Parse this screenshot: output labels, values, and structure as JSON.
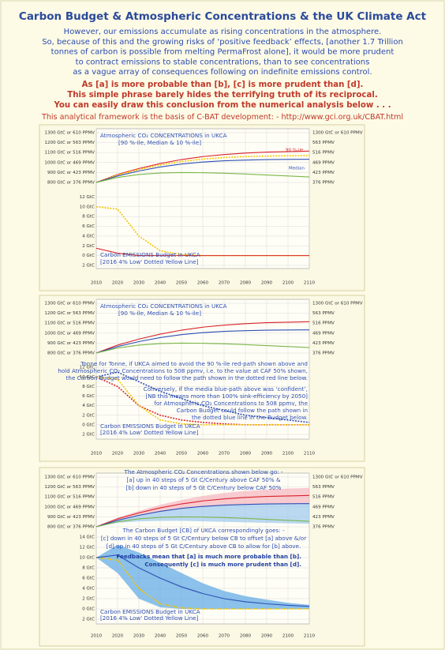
{
  "header": {
    "title": "Carbon Budget & Atmospheric Concentrations & the UK Climate Act",
    "intro": [
      "However, our emissions accumulate as rising concentrations in the atmosphere.",
      "So, because of this and the growing risks of ‘positive feedback’ effects, [another 1.7 Trillion",
      "tonnes of carbon is possible from melting PermaFrost alone], it would be more prudent",
      "to contract emissions to stable concentrations, than to see concentrations",
      "as a vague array of consequences following on indefinite emissions control."
    ],
    "emphasis": [
      "As [a] is more probable than [b], [c] is more prudent than [d].",
      "This simple phrase barely hides the terrifying truth of its reciprocal.",
      "You can easily draw this conclusion from the numerical analysis below . . ."
    ],
    "source": "This analytical framework is the basis of C-BAT development: - http://www.gci.org.uk/CBAT.html"
  },
  "chart_data": [
    {
      "type": "line",
      "x": [
        2010,
        2020,
        2030,
        2040,
        2050,
        2060,
        2070,
        2080,
        2090,
        2100,
        2110
      ],
      "xlim": [
        2010,
        2110
      ],
      "xticks": [
        2010,
        2020,
        2030,
        2040,
        2050,
        2060,
        2070,
        2080,
        2090,
        2100,
        2110
      ],
      "ylim": [
        800,
        1300
      ],
      "yticks": [
        {
          "value": 1300,
          "label": "1300 GtC or 610 PPMV"
        },
        {
          "value": 1200,
          "label": "1200 GtC or 563 PPMV"
        },
        {
          "value": 1100,
          "label": "1100 GtC or 516 PPMV"
        },
        {
          "value": 1000,
          "label": "1000 GtC or 469 PPMV"
        },
        {
          "value": 900,
          "label": "900 GtC or 423 PPMV"
        },
        {
          "value": 800,
          "label": "800 GtC or 376 PPMV"
        }
      ],
      "y2lim": [
        800,
        1300
      ],
      "y2ticks": [
        {
          "value": 1300,
          "label": "1300 GtC or 610 PPMV"
        },
        {
          "value": 1200,
          "label": "563 PPMV"
        },
        {
          "value": 1100,
          "label": "516 PPMV"
        },
        {
          "value": 1000,
          "label": "469 PPMV"
        },
        {
          "value": 900,
          "label": "423 PPMV"
        },
        {
          "value": 800,
          "label": "376 PPMV"
        }
      ],
      "y3lim": [
        -2,
        14
      ],
      "y3ticks": [
        {
          "value": 12,
          "label": "12 GtC"
        },
        {
          "value": 10,
          "label": "10 GtC"
        },
        {
          "value": 8,
          "label": "8 GtC"
        },
        {
          "value": 6,
          "label": "6 GtC"
        },
        {
          "value": 4,
          "label": "4 GtC"
        },
        {
          "value": 2,
          "label": "2 GtC"
        },
        {
          "value": 0,
          "label": "0 GtC"
        },
        {
          "value": -2,
          "label": "2 GtC"
        }
      ],
      "grid": true,
      "series": [
        {
          "color": "#d9232a",
          "values": [
            800,
            880,
            940,
            990,
            1030,
            1060,
            1080,
            1095,
            1105,
            1110,
            1115
          ]
        },
        {
          "color": "#f2c500",
          "dash": true,
          "values": [
            800,
            875,
            930,
            975,
            1010,
            1035,
            1050,
            1060,
            1065,
            1068,
            1070
          ]
        },
        {
          "color": "#2f4fb4",
          "values": [
            800,
            865,
            915,
            955,
            985,
            1005,
            1018,
            1025,
            1030,
            1032,
            1033
          ]
        },
        {
          "color": "#7ab648",
          "values": [
            800,
            850,
            880,
            895,
            900,
            898,
            893,
            885,
            875,
            865,
            855
          ]
        },
        {
          "color": "#f2c500",
          "dash": true,
          "axis": "y3",
          "values": [
            10,
            9.5,
            4,
            1,
            0.2,
            0,
            0,
            0,
            0,
            0,
            0
          ]
        },
        {
          "color": "#d9232a",
          "axis": "y3",
          "values": [
            1.5,
            0.5,
            0,
            0,
            0,
            0,
            0,
            0,
            0,
            0,
            0
          ]
        }
      ],
      "annotations": [
        "Atmospheric CO₂ CONCENTRATIONS in UKCA",
        "[90 %-ile, Median & 10 %-ile]",
        "90 %-ile",
        "Median",
        "Carbon EMISSIONS Budget in UKCA",
        "[2016 4% Low' Dotted Yellow Line]"
      ]
    },
    {
      "type": "line",
      "x": [
        2010,
        2020,
        2030,
        2040,
        2050,
        2060,
        2070,
        2080,
        2090,
        2100,
        2110
      ],
      "xlim": [
        2010,
        2110
      ],
      "xticks": [
        2010,
        2020,
        2030,
        2040,
        2050,
        2060,
        2070,
        2080,
        2090,
        2100,
        2110
      ],
      "ylim": [
        800,
        1300
      ],
      "yticks": [
        {
          "value": 1300,
          "label": "1300 GtC or 610 PPMV"
        },
        {
          "value": 1200,
          "label": "1200 GtC or 563 PPMV"
        },
        {
          "value": 1100,
          "label": "1100 GtC or 516 PPMV"
        },
        {
          "value": 1000,
          "label": "1000 GtC or 469 PPMV"
        },
        {
          "value": 900,
          "label": "900 GtC or 423 PPMV"
        },
        {
          "value": 800,
          "label": "800 GtC or 376 PPMV"
        }
      ],
      "y2lim": [
        800,
        1300
      ],
      "y2ticks": [
        {
          "value": 1300,
          "label": "1300 GtC or 610 PPMV"
        },
        {
          "value": 1200,
          "label": "563 PPMV"
        },
        {
          "value": 1100,
          "label": "516 PPMV"
        },
        {
          "value": 1000,
          "label": "469 PPMV"
        },
        {
          "value": 900,
          "label": "423 PPMV"
        },
        {
          "value": 800,
          "label": "376 PPMV"
        }
      ],
      "y3lim": [
        -2,
        14
      ],
      "y3ticks": [
        {
          "value": 12,
          "label": "12 GtC"
        },
        {
          "value": 10,
          "label": "10 GtC"
        },
        {
          "value": 8,
          "label": "8 GtC"
        },
        {
          "value": 6,
          "label": "6 GtC"
        },
        {
          "value": 4,
          "label": "4 GtC"
        },
        {
          "value": 2,
          "label": "2 GtC"
        },
        {
          "value": 0,
          "label": "0 GtC"
        },
        {
          "value": -2,
          "label": "2 GtC"
        }
      ],
      "grid": true,
      "series": [
        {
          "color": "#d9232a",
          "values": [
            800,
            880,
            940,
            990,
            1030,
            1060,
            1080,
            1095,
            1105,
            1110,
            1115
          ]
        },
        {
          "color": "#2f4fb4",
          "values": [
            800,
            865,
            915,
            955,
            985,
            1005,
            1018,
            1025,
            1030,
            1032,
            1033
          ]
        },
        {
          "color": "#7ab648",
          "values": [
            800,
            850,
            880,
            895,
            900,
            898,
            893,
            885,
            875,
            865,
            855
          ]
        },
        {
          "color": "#d9232a",
          "dash": true,
          "axis": "y3",
          "values": [
            10,
            8,
            4,
            2,
            1,
            0.5,
            0.2,
            0,
            0,
            0,
            0
          ]
        },
        {
          "color": "#2f4fb4",
          "dash": true,
          "axis": "y3",
          "values": [
            10,
            11,
            9,
            7,
            5.5,
            4,
            3,
            2,
            1.5,
            1,
            0.5
          ]
        },
        {
          "color": "#f2c500",
          "dash": true,
          "axis": "y3",
          "values": [
            10,
            9.5,
            4,
            1,
            0.2,
            0,
            0,
            0,
            0,
            0,
            0
          ]
        }
      ],
      "annotations": [
        "Atmospheric CO₂ CONCENTRATIONS in UKCA",
        "[90 %-ile, Median & 10 %-ile]",
        "Tonne for Tonne, if UKCA aimed to avoid the 90 %-ile red-path shown above and",
        "hold Atmospheric CO₂ Concentrations to 508 ppmv, i.e. to the value at CAF 50% shown,",
        "the Carbon Budget would need to follow the path shown in the dotted red line below.",
        "Conversely, if the media blue-path above was ‘confident’,",
        "[NB this means more than 100% sink-efficiency by 2050]",
        "for Atmospheric CO₂ Concentrations to 508 ppmv,  the",
        "Carbon Budget could follow the path shown in",
        "the dotted blue line in the Budget below.",
        "Carbon EMISSIONS Budget in UKCA",
        "[2016 4% Low' Dotted Yellow Line]"
      ]
    },
    {
      "type": "band",
      "x": [
        2010,
        2020,
        2030,
        2040,
        2050,
        2060,
        2070,
        2080,
        2090,
        2100,
        2110
      ],
      "xlim": [
        2010,
        2110
      ],
      "xticks": [
        2010,
        2020,
        2030,
        2040,
        2050,
        2060,
        2070,
        2080,
        2090,
        2100,
        2110
      ],
      "ylim": [
        800,
        1300
      ],
      "yticks": [
        {
          "value": 1300,
          "label": "1300 GtC or 610 PPMV"
        },
        {
          "value": 1200,
          "label": "1200 GtC or 563 PPMV"
        },
        {
          "value": 1100,
          "label": "1100 GtC or 516 PPMV"
        },
        {
          "value": 1000,
          "label": "1000 GtC or 469 PPMV"
        },
        {
          "value": 900,
          "label": "900 GtC or 423 PPMV"
        },
        {
          "value": 800,
          "label": "800 GtC or 376 PPMV"
        }
      ],
      "y2lim": [
        800,
        1300
      ],
      "y2ticks": [
        {
          "value": 1300,
          "label": "1300 GtC or 610 PPMV"
        },
        {
          "value": 1200,
          "label": "563 PPMV"
        },
        {
          "value": 1100,
          "label": "516 PPMV"
        },
        {
          "value": 1000,
          "label": "469 PPMV"
        },
        {
          "value": 900,
          "label": "423 PPMV"
        },
        {
          "value": 800,
          "label": "376 PPMV"
        }
      ],
      "y3lim": [
        -2,
        14
      ],
      "y3ticks": [
        {
          "value": 14,
          "label": "14 GtC"
        },
        {
          "value": 12,
          "label": "12 GtC"
        },
        {
          "value": 10,
          "label": "10 GtC"
        },
        {
          "value": 8,
          "label": "8 GtC"
        },
        {
          "value": 6,
          "label": "6 GtC"
        },
        {
          "value": 4,
          "label": "4 GtC"
        },
        {
          "value": 2,
          "label": "2 GtC"
        },
        {
          "value": 0,
          "label": "0 GtC"
        },
        {
          "value": -2,
          "label": "2 GtC"
        }
      ],
      "grid": true,
      "bands": [
        {
          "color": "#f5b5c0",
          "upper": [
            800,
            890,
            960,
            1020,
            1070,
            1110,
            1140,
            1160,
            1175,
            1185,
            1190
          ],
          "lower": [
            800,
            865,
            915,
            955,
            985,
            1005,
            1018,
            1025,
            1030,
            1032,
            1033
          ]
        },
        {
          "color": "#9cc8ee",
          "upper": [
            800,
            865,
            915,
            955,
            985,
            1005,
            1018,
            1025,
            1030,
            1032,
            1033
          ],
          "lower": [
            800,
            840,
            855,
            860,
            860,
            855,
            850,
            845,
            840,
            835,
            830
          ]
        },
        {
          "color": "#5aa6e6",
          "axis": "y3",
          "upper": [
            10,
            12.5,
            11,
            9,
            7,
            5,
            3.5,
            2.5,
            1.8,
            1.2,
            0.8
          ],
          "lower": [
            10,
            7,
            2,
            0.3,
            0,
            0,
            0,
            0,
            0,
            0,
            0
          ]
        }
      ],
      "series": [
        {
          "color": "#d9232a",
          "values": [
            800,
            880,
            940,
            990,
            1030,
            1060,
            1080,
            1095,
            1105,
            1110,
            1115
          ]
        },
        {
          "color": "#2f4fb4",
          "values": [
            800,
            865,
            915,
            955,
            985,
            1005,
            1018,
            1025,
            1030,
            1032,
            1033
          ]
        },
        {
          "color": "#7ab648",
          "values": [
            800,
            850,
            880,
            895,
            900,
            898,
            893,
            885,
            875,
            865,
            855
          ]
        },
        {
          "color": "#f2c500",
          "dash": true,
          "axis": "y3",
          "values": [
            10,
            9.5,
            4,
            1,
            0.2,
            0,
            0,
            0,
            0,
            0,
            0
          ]
        },
        {
          "color": "#2f4fb4",
          "axis": "y3",
          "values": [
            10,
            10.5,
            8,
            6,
            4.3,
            3,
            2,
            1.4,
            1,
            0.7,
            0.5
          ]
        }
      ],
      "annotations": [
        "The Atmospheric CO₂ Concentrations shown below go: -",
        "[a] up in 40 steps of 5 Gt C/Century above CAF 50% &",
        "[b] down in 40 steps of 5 Gt C/Century below CAF 50%",
        "The Carbon Budget [CB] of UKCA correspondingly goes: -",
        "[c] down in 40 steps of 5 Gt C/Century below CB to offset [a] above &/or",
        "[d] up in 40 steps of 5 Gt C/Century above CB to allow for [b] above.",
        "Feedbacks mean that [a] is much more probable than [b].",
        "Consequently [c] is much more prudent than [d].",
        "Carbon EMISSIONS Budget in UKCA",
        "[2016 4% Low' Dotted Yellow Line]"
      ]
    }
  ]
}
